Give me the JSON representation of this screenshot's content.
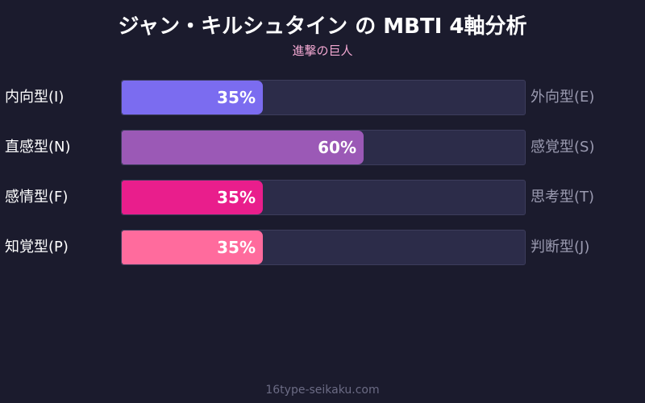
{
  "title": "ジャン・キルシュタイン の MBTI 4軸分析",
  "subtitle": "進撃の巨人",
  "footer": "16type-seikaku.com",
  "chart_data": {
    "type": "bar",
    "orientation": "horizontal",
    "title": "ジャン・キルシュタイン の MBTI 4軸分析",
    "subtitle": "進撃の巨人",
    "xlim": [
      0,
      100
    ],
    "grid": false,
    "categories": [
      "内向型(I)",
      "直感型(N)",
      "感情型(F)",
      "知覚型(P)"
    ],
    "opposite_labels": [
      "外向型(E)",
      "感覚型(S)",
      "思考型(T)",
      "判断型(J)"
    ],
    "values": [
      35,
      60,
      35,
      35
    ],
    "value_labels": [
      "35%",
      "60%",
      "35%",
      "35%"
    ],
    "colors": [
      "#7b6cf0",
      "#9b59b6",
      "#e91e8c",
      "#ff6b9d"
    ]
  }
}
